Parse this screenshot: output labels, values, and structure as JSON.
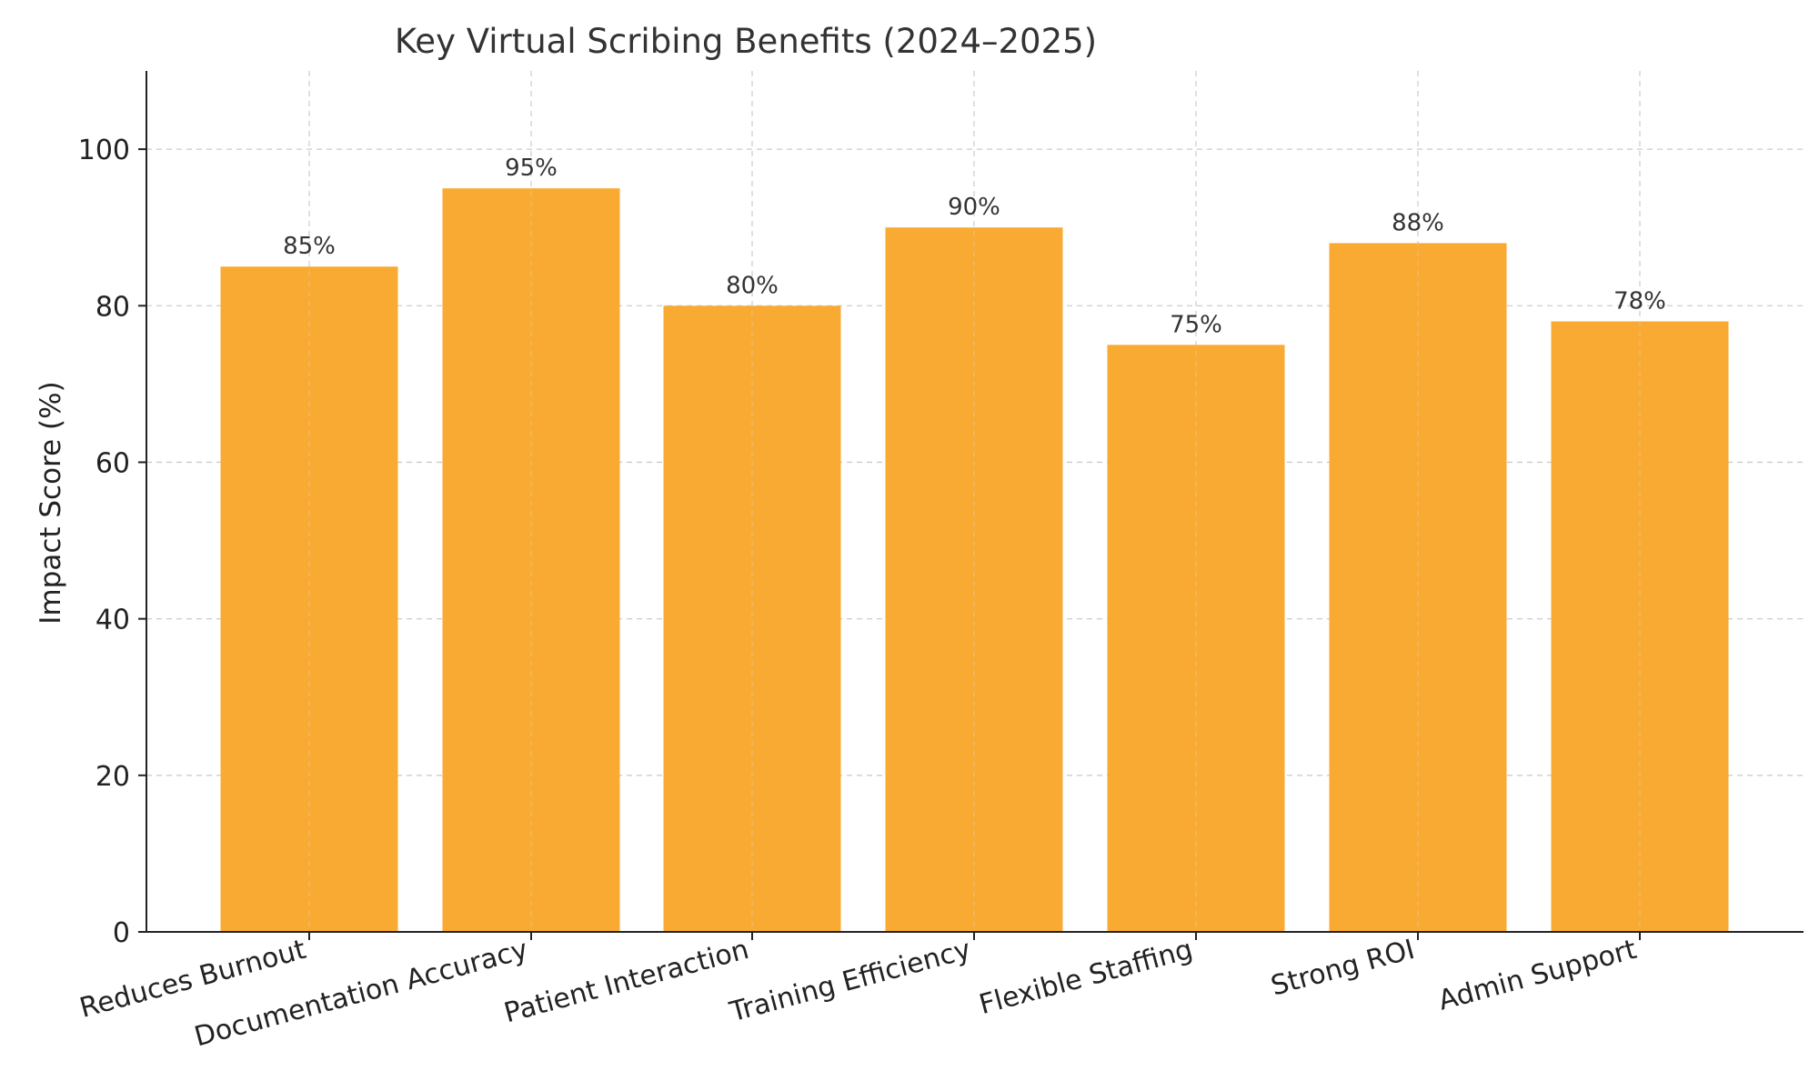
{
  "chart_data": {
    "type": "bar",
    "title": "Key Virtual Scribing Benefits (2024–2025)",
    "xlabel": "",
    "ylabel": "Impact Score (%)",
    "categories": [
      "Reduces Burnout",
      "Documentation Accuracy",
      "Patient Interaction",
      "Training Efficiency",
      "Flexible Staffing",
      "Strong ROI",
      "Admin Support"
    ],
    "values": [
      85,
      95,
      80,
      90,
      75,
      88,
      78
    ],
    "data_labels": [
      "85%",
      "95%",
      "80%",
      "90%",
      "75%",
      "88%",
      "78%"
    ],
    "y_ticks": [
      0,
      20,
      40,
      60,
      80,
      100
    ],
    "y_tick_labels": [
      "0",
      "20",
      "40",
      "60",
      "80",
      "100"
    ],
    "ylim": [
      0,
      110
    ],
    "grid": true,
    "bar_color": "#F9AA33",
    "grid_color": "#CCCCCC",
    "axis_color": "#222222"
  }
}
